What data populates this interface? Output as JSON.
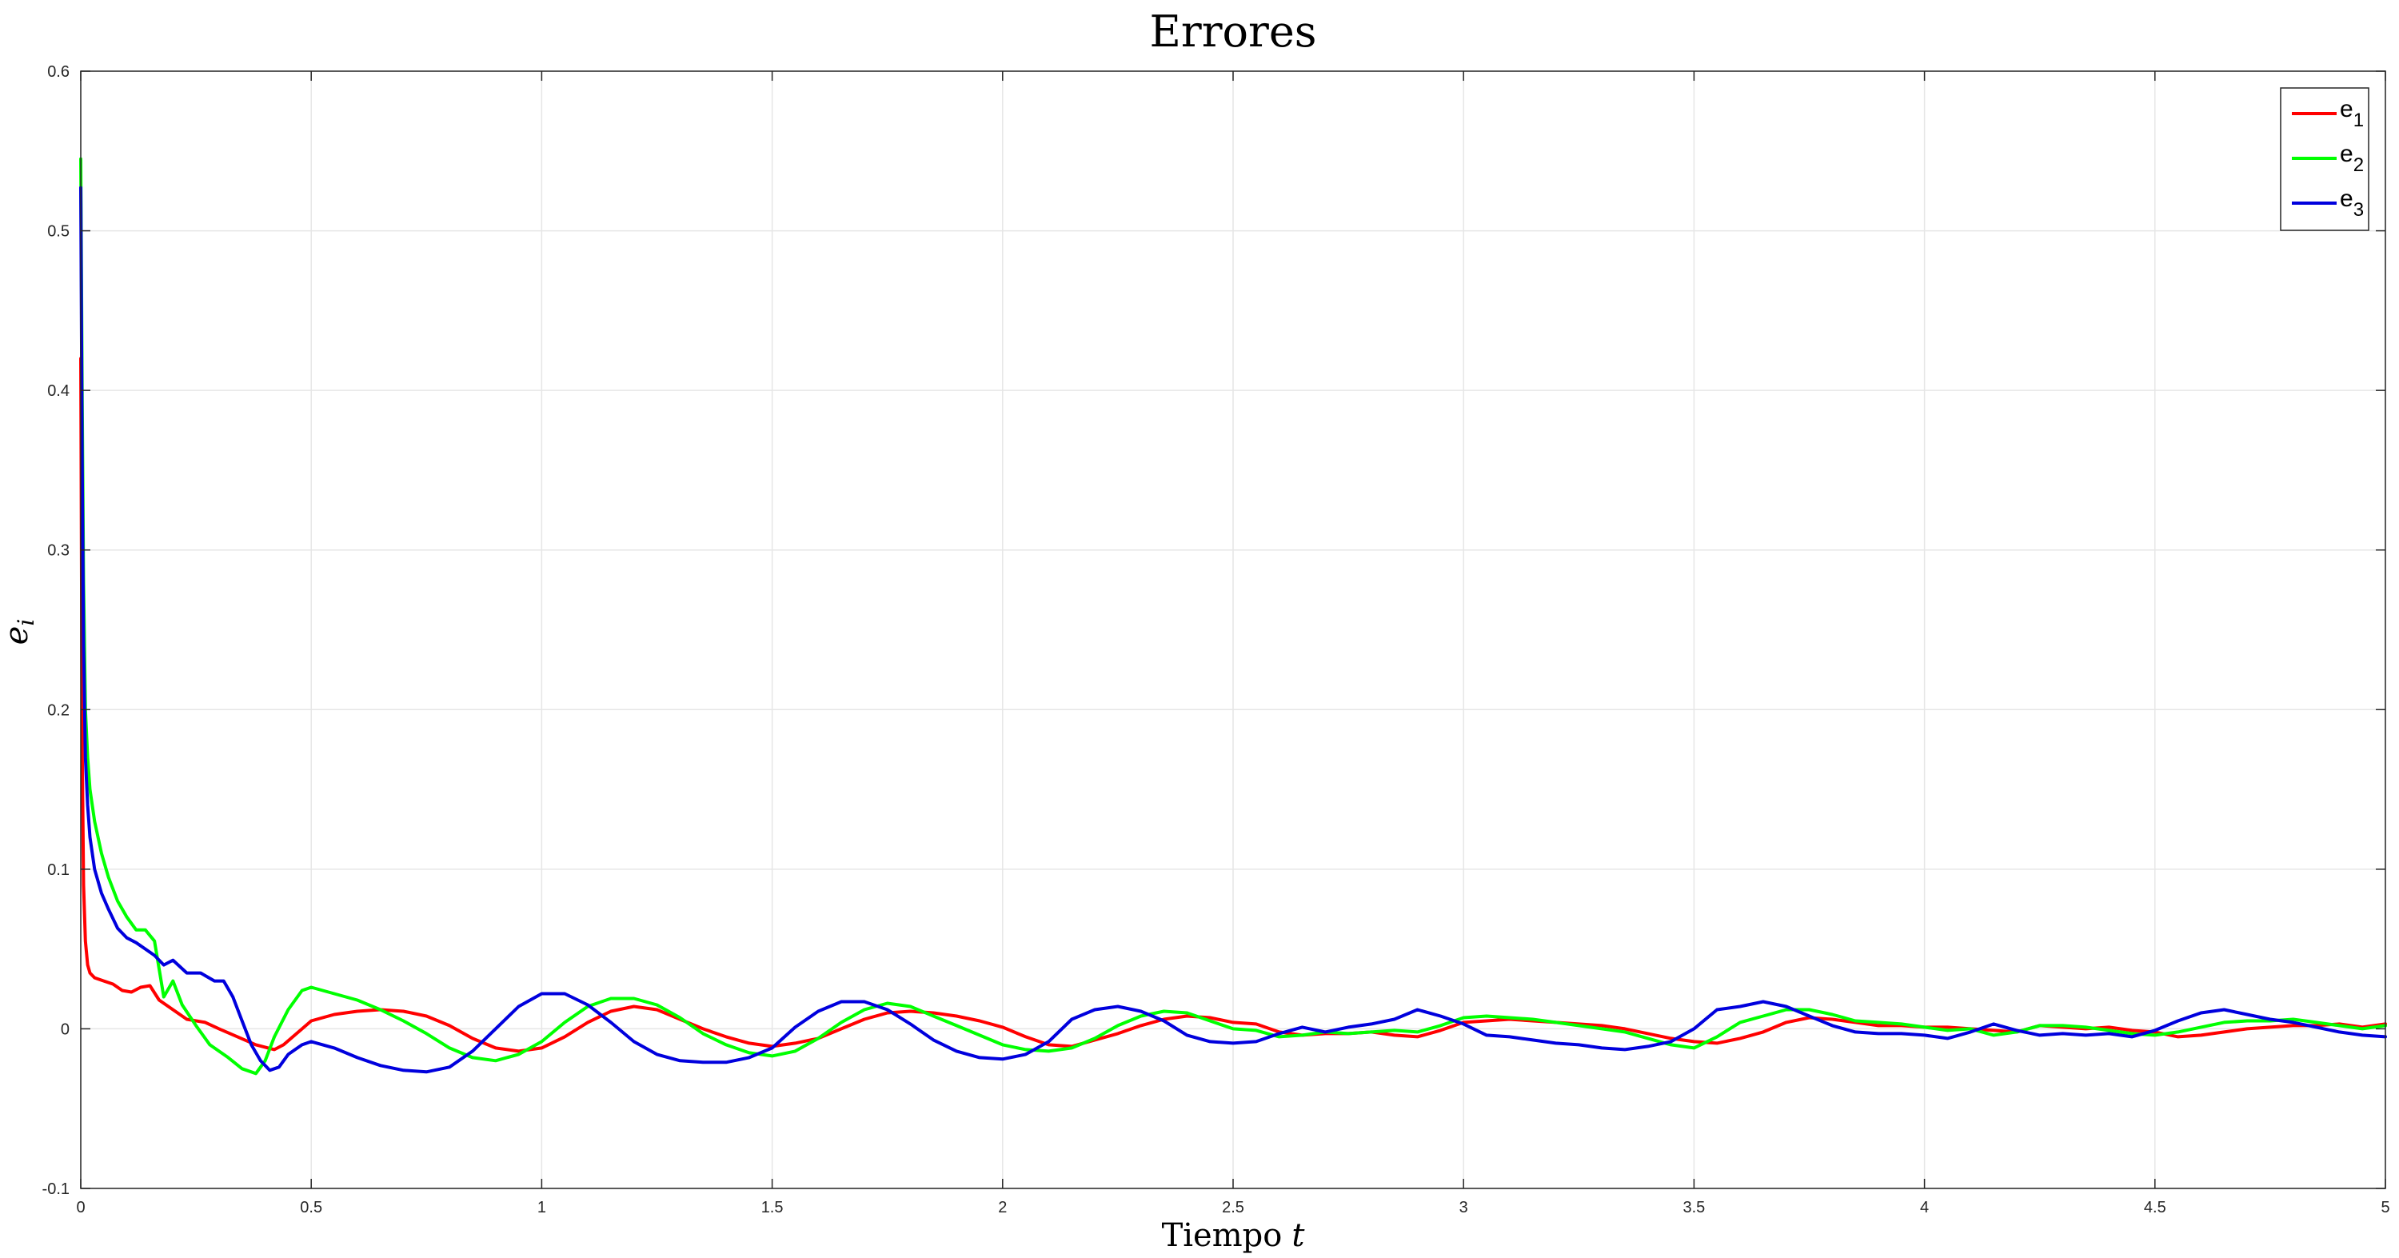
{
  "chart_data": {
    "type": "line",
    "title": "Errores",
    "xlabel": "Tiempo",
    "xlabel_var": "t",
    "ylabel_var": "e",
    "ylabel_sub": "i",
    "xlim": [
      0,
      5
    ],
    "ylim": [
      -0.1,
      0.6
    ],
    "xticks": [
      0,
      0.5,
      1,
      1.5,
      2,
      2.5,
      3,
      3.5,
      4,
      4.5,
      5
    ],
    "xtick_labels": [
      "0",
      "0.5",
      "1",
      "1.5",
      "2",
      "2.5",
      "3",
      "3.5",
      "4",
      "4.5",
      "5"
    ],
    "yticks": [
      -0.1,
      0,
      0.1,
      0.2,
      0.3,
      0.4,
      0.5,
      0.6
    ],
    "ytick_labels": [
      "-0.1",
      "0",
      "0.1",
      "0.2",
      "0.3",
      "0.4",
      "0.5",
      "0.6"
    ],
    "grid": true,
    "legend_position": "top-right",
    "series": [
      {
        "name": "e1",
        "label_base": "e",
        "label_sub": "1",
        "color": "#ff0000",
        "x": [
          0,
          0.003,
          0.006,
          0.01,
          0.015,
          0.02,
          0.03,
          0.05,
          0.07,
          0.09,
          0.11,
          0.13,
          0.15,
          0.17,
          0.2,
          0.23,
          0.27,
          0.3,
          0.34,
          0.38,
          0.42,
          0.44,
          0.5,
          0.55,
          0.6,
          0.65,
          0.7,
          0.75,
          0.8,
          0.85,
          0.9,
          0.95,
          1.0,
          1.05,
          1.1,
          1.15,
          1.2,
          1.25,
          1.3,
          1.35,
          1.4,
          1.45,
          1.5,
          1.55,
          1.6,
          1.65,
          1.7,
          1.75,
          1.8,
          1.85,
          1.9,
          1.95,
          2.0,
          2.05,
          2.1,
          2.15,
          2.2,
          2.25,
          2.3,
          2.35,
          2.4,
          2.45,
          2.5,
          2.55,
          2.6,
          2.65,
          2.7,
          2.75,
          2.8,
          2.85,
          2.9,
          2.95,
          3.0,
          3.05,
          3.1,
          3.15,
          3.2,
          3.25,
          3.3,
          3.35,
          3.4,
          3.45,
          3.5,
          3.55,
          3.6,
          3.65,
          3.7,
          3.75,
          3.8,
          3.85,
          3.9,
          3.95,
          4.0,
          4.05,
          4.1,
          4.15,
          4.2,
          4.25,
          4.3,
          4.35,
          4.4,
          4.45,
          4.5,
          4.55,
          4.6,
          4.65,
          4.7,
          4.75,
          4.8,
          4.85,
          4.9,
          4.95,
          5.0
        ],
        "y": [
          0.42,
          0.18,
          0.09,
          0.055,
          0.04,
          0.035,
          0.032,
          0.03,
          0.028,
          0.024,
          0.023,
          0.026,
          0.027,
          0.018,
          0.012,
          0.006,
          0.004,
          0.0,
          -0.005,
          -0.01,
          -0.013,
          -0.01,
          0.005,
          0.009,
          0.011,
          0.012,
          0.011,
          0.008,
          0.002,
          -0.006,
          -0.012,
          -0.014,
          -0.012,
          -0.005,
          0.004,
          0.011,
          0.014,
          0.012,
          0.006,
          0.0,
          -0.005,
          -0.009,
          -0.011,
          -0.009,
          -0.006,
          0.0,
          0.006,
          0.01,
          0.011,
          0.01,
          0.008,
          0.005,
          0.001,
          -0.005,
          -0.01,
          -0.011,
          -0.007,
          -0.003,
          0.002,
          0.006,
          0.008,
          0.007,
          0.004,
          0.003,
          -0.002,
          -0.004,
          -0.003,
          -0.003,
          -0.002,
          -0.004,
          -0.005,
          -0.001,
          0.004,
          0.005,
          0.006,
          0.005,
          0.004,
          0.003,
          0.002,
          0.0,
          -0.003,
          -0.006,
          -0.008,
          -0.009,
          -0.006,
          -0.002,
          0.004,
          0.007,
          0.006,
          0.004,
          0.002,
          0.002,
          0.001,
          0.001,
          0.0,
          -0.001,
          -0.002,
          0.002,
          0.001,
          0.0,
          0.001,
          -0.001,
          -0.002,
          -0.005,
          -0.004,
          -0.002,
          0.0,
          0.001,
          0.002,
          0.002,
          0.003,
          0.001,
          0.003
        ]
      },
      {
        "name": "e2",
        "label_base": "e",
        "label_sub": "2",
        "color": "#00ff00",
        "x": [
          0,
          0.003,
          0.006,
          0.01,
          0.015,
          0.02,
          0.03,
          0.045,
          0.06,
          0.08,
          0.1,
          0.12,
          0.14,
          0.16,
          0.18,
          0.2,
          0.22,
          0.25,
          0.28,
          0.32,
          0.35,
          0.38,
          0.4,
          0.42,
          0.45,
          0.48,
          0.5,
          0.55,
          0.6,
          0.65,
          0.7,
          0.75,
          0.8,
          0.85,
          0.9,
          0.95,
          1.0,
          1.05,
          1.1,
          1.15,
          1.2,
          1.25,
          1.3,
          1.35,
          1.4,
          1.45,
          1.5,
          1.55,
          1.6,
          1.65,
          1.7,
          1.75,
          1.8,
          1.85,
          1.9,
          1.95,
          2.0,
          2.05,
          2.1,
          2.15,
          2.2,
          2.25,
          2.3,
          2.35,
          2.4,
          2.45,
          2.5,
          2.55,
          2.6,
          2.65,
          2.7,
          2.75,
          2.8,
          2.85,
          2.9,
          2.95,
          3.0,
          3.05,
          3.1,
          3.15,
          3.2,
          3.25,
          3.3,
          3.35,
          3.4,
          3.45,
          3.5,
          3.55,
          3.6,
          3.65,
          3.7,
          3.75,
          3.8,
          3.85,
          3.9,
          3.95,
          4.0,
          4.05,
          4.1,
          4.15,
          4.2,
          4.25,
          4.3,
          4.35,
          4.4,
          4.45,
          4.5,
          4.55,
          4.6,
          4.65,
          4.7,
          4.75,
          4.8,
          4.85,
          4.9,
          4.95,
          5.0
        ],
        "y": [
          0.545,
          0.4,
          0.28,
          0.2,
          0.17,
          0.15,
          0.13,
          0.11,
          0.095,
          0.08,
          0.07,
          0.062,
          0.062,
          0.055,
          0.02,
          0.03,
          0.015,
          0.002,
          -0.01,
          -0.018,
          -0.025,
          -0.028,
          -0.02,
          -0.005,
          0.012,
          0.024,
          0.026,
          0.022,
          0.018,
          0.012,
          0.005,
          -0.003,
          -0.012,
          -0.018,
          -0.02,
          -0.016,
          -0.008,
          0.004,
          0.014,
          0.019,
          0.019,
          0.015,
          0.007,
          -0.003,
          -0.01,
          -0.015,
          -0.017,
          -0.014,
          -0.006,
          0.004,
          0.012,
          0.016,
          0.014,
          0.008,
          0.002,
          -0.004,
          -0.01,
          -0.013,
          -0.014,
          -0.012,
          -0.006,
          0.002,
          0.008,
          0.011,
          0.01,
          0.005,
          0.0,
          -0.001,
          -0.005,
          -0.004,
          -0.002,
          -0.003,
          -0.002,
          -0.001,
          -0.002,
          0.002,
          0.007,
          0.008,
          0.007,
          0.006,
          0.004,
          0.002,
          0.0,
          -0.002,
          -0.006,
          -0.01,
          -0.012,
          -0.005,
          0.004,
          0.008,
          0.012,
          0.012,
          0.009,
          0.005,
          0.004,
          0.003,
          0.001,
          -0.001,
          0.0,
          -0.004,
          -0.002,
          0.002,
          0.002,
          0.001,
          -0.001,
          -0.003,
          -0.004,
          -0.002,
          0.001,
          0.004,
          0.005,
          0.005,
          0.006,
          0.004,
          0.002,
          0.0,
          0.002
        ]
      },
      {
        "name": "e3",
        "label_base": "e",
        "label_sub": "3",
        "color": "#0000dd",
        "x": [
          0,
          0.003,
          0.006,
          0.01,
          0.015,
          0.02,
          0.03,
          0.045,
          0.06,
          0.08,
          0.1,
          0.12,
          0.14,
          0.16,
          0.18,
          0.2,
          0.23,
          0.26,
          0.29,
          0.31,
          0.33,
          0.35,
          0.37,
          0.39,
          0.41,
          0.43,
          0.45,
          0.48,
          0.5,
          0.55,
          0.6,
          0.65,
          0.7,
          0.75,
          0.8,
          0.85,
          0.9,
          0.95,
          1.0,
          1.05,
          1.1,
          1.15,
          1.2,
          1.25,
          1.3,
          1.35,
          1.4,
          1.45,
          1.5,
          1.55,
          1.6,
          1.65,
          1.7,
          1.75,
          1.8,
          1.85,
          1.9,
          1.95,
          2.0,
          2.05,
          2.1,
          2.15,
          2.2,
          2.25,
          2.3,
          2.35,
          2.4,
          2.45,
          2.5,
          2.55,
          2.6,
          2.65,
          2.7,
          2.75,
          2.8,
          2.85,
          2.9,
          2.95,
          3.0,
          3.05,
          3.1,
          3.15,
          3.2,
          3.25,
          3.3,
          3.35,
          3.4,
          3.45,
          3.5,
          3.55,
          3.6,
          3.65,
          3.7,
          3.75,
          3.8,
          3.85,
          3.9,
          3.95,
          4.0,
          4.05,
          4.1,
          4.15,
          4.2,
          4.25,
          4.3,
          4.35,
          4.4,
          4.45,
          4.5,
          4.55,
          4.6,
          4.65,
          4.7,
          4.75,
          4.8,
          4.85,
          4.9,
          4.95,
          5.0
        ],
        "y": [
          0.527,
          0.36,
          0.24,
          0.17,
          0.14,
          0.12,
          0.1,
          0.085,
          0.075,
          0.063,
          0.057,
          0.054,
          0.05,
          0.046,
          0.04,
          0.043,
          0.035,
          0.035,
          0.03,
          0.03,
          0.02,
          0.005,
          -0.01,
          -0.02,
          -0.026,
          -0.024,
          -0.016,
          -0.01,
          -0.008,
          -0.012,
          -0.018,
          -0.023,
          -0.026,
          -0.027,
          -0.024,
          -0.014,
          0.0,
          0.014,
          0.022,
          0.022,
          0.015,
          0.004,
          -0.008,
          -0.016,
          -0.02,
          -0.021,
          -0.021,
          -0.018,
          -0.012,
          0.001,
          0.011,
          0.017,
          0.017,
          0.012,
          0.003,
          -0.007,
          -0.014,
          -0.018,
          -0.019,
          -0.016,
          -0.008,
          0.006,
          0.012,
          0.014,
          0.011,
          0.005,
          -0.004,
          -0.008,
          -0.009,
          -0.008,
          -0.003,
          0.001,
          -0.002,
          0.001,
          0.003,
          0.006,
          0.012,
          0.008,
          0.003,
          -0.004,
          -0.005,
          -0.007,
          -0.009,
          -0.01,
          -0.012,
          -0.013,
          -0.011,
          -0.008,
          0.0,
          0.012,
          0.014,
          0.017,
          0.014,
          0.008,
          0.002,
          -0.002,
          -0.003,
          -0.003,
          -0.004,
          -0.006,
          -0.002,
          0.003,
          -0.001,
          -0.004,
          -0.003,
          -0.004,
          -0.003,
          -0.005,
          -0.001,
          0.005,
          0.01,
          0.012,
          0.009,
          0.006,
          0.004,
          0.001,
          -0.002,
          -0.004,
          -0.005
        ]
      }
    ]
  }
}
